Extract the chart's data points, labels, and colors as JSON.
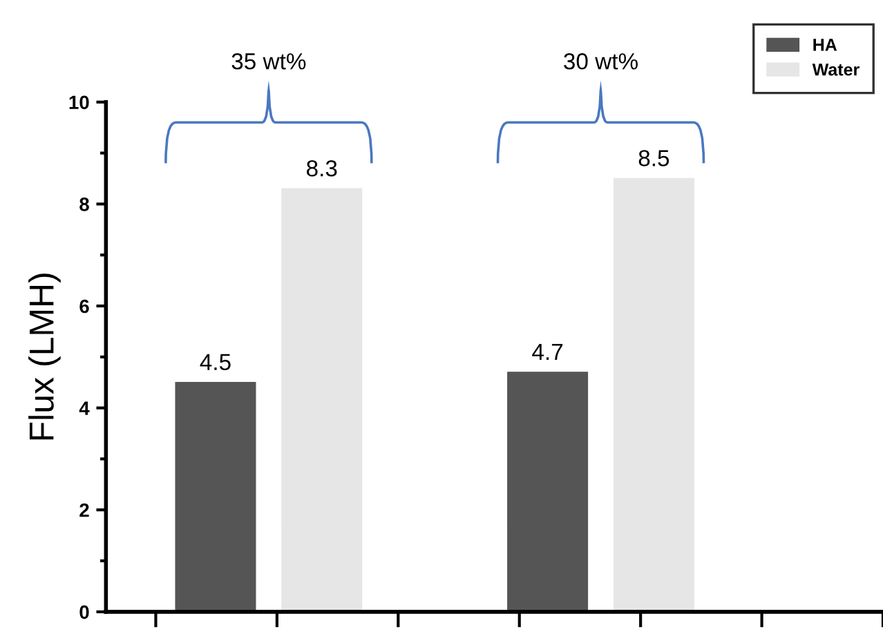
{
  "chart_data": {
    "type": "bar",
    "ylabel": "Flux (LMH)",
    "categories": [
      null,
      null
    ],
    "series": [
      {
        "name": "HA",
        "color": "#555555",
        "values": [
          4.5,
          4.7
        ]
      },
      {
        "name": "Water",
        "color": "#e6e6e6",
        "values": [
          8.3,
          8.5
        ]
      }
    ],
    "ylim": [
      0,
      10
    ],
    "yticks": [
      0,
      2,
      4,
      6,
      8,
      10
    ],
    "data_labels": true,
    "legend": "top right",
    "tick_labels": "y",
    "grid": false,
    "annotations": [
      "35 wt%",
      "30 wt%"
    ]
  }
}
